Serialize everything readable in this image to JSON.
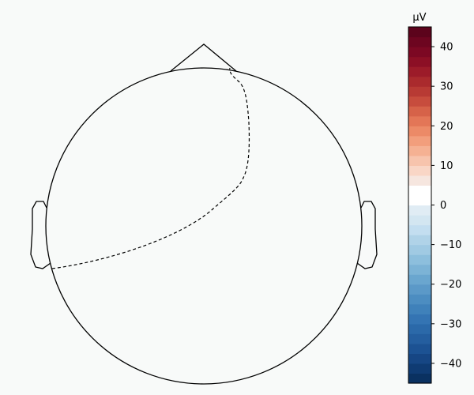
{
  "colorbar": {
    "unit_label": "µV",
    "min": -45,
    "max": 45,
    "ticks": [
      -40,
      -30,
      -20,
      -10,
      0,
      10,
      20,
      30,
      40
    ],
    "tick_labels": [
      "−40",
      "−30",
      "−20",
      "−10",
      "0",
      "10",
      "20",
      "30",
      "40"
    ],
    "bands": [
      "#0a3161",
      "#0f3b73",
      "#164684",
      "#1c5293",
      "#245e9f",
      "#2b69a9",
      "#3474b3",
      "#3f81ba",
      "#4c8dc1",
      "#5b99c8",
      "#6aa6cf",
      "#7cb3d6",
      "#8dbfdd",
      "#a0cae3",
      "#b0d3e8",
      "#c3def0",
      "#d3e6f1",
      "#e0ecf4",
      "#ffffff",
      "#ffffff",
      "#f6e6df",
      "#f9d6c6",
      "#f7c4ad",
      "#f5b193",
      "#f29e7c",
      "#ec8a67",
      "#e37657",
      "#d66249",
      "#c74c3d",
      "#b83a34",
      "#aa2a2d",
      "#9c1b29",
      "#8c0f25",
      "#7c0823",
      "#6d0520",
      "#5c031c"
    ]
  },
  "head": {
    "outline_color": "#000000",
    "contour_color": "#000000",
    "contour_style": "dashed"
  }
}
